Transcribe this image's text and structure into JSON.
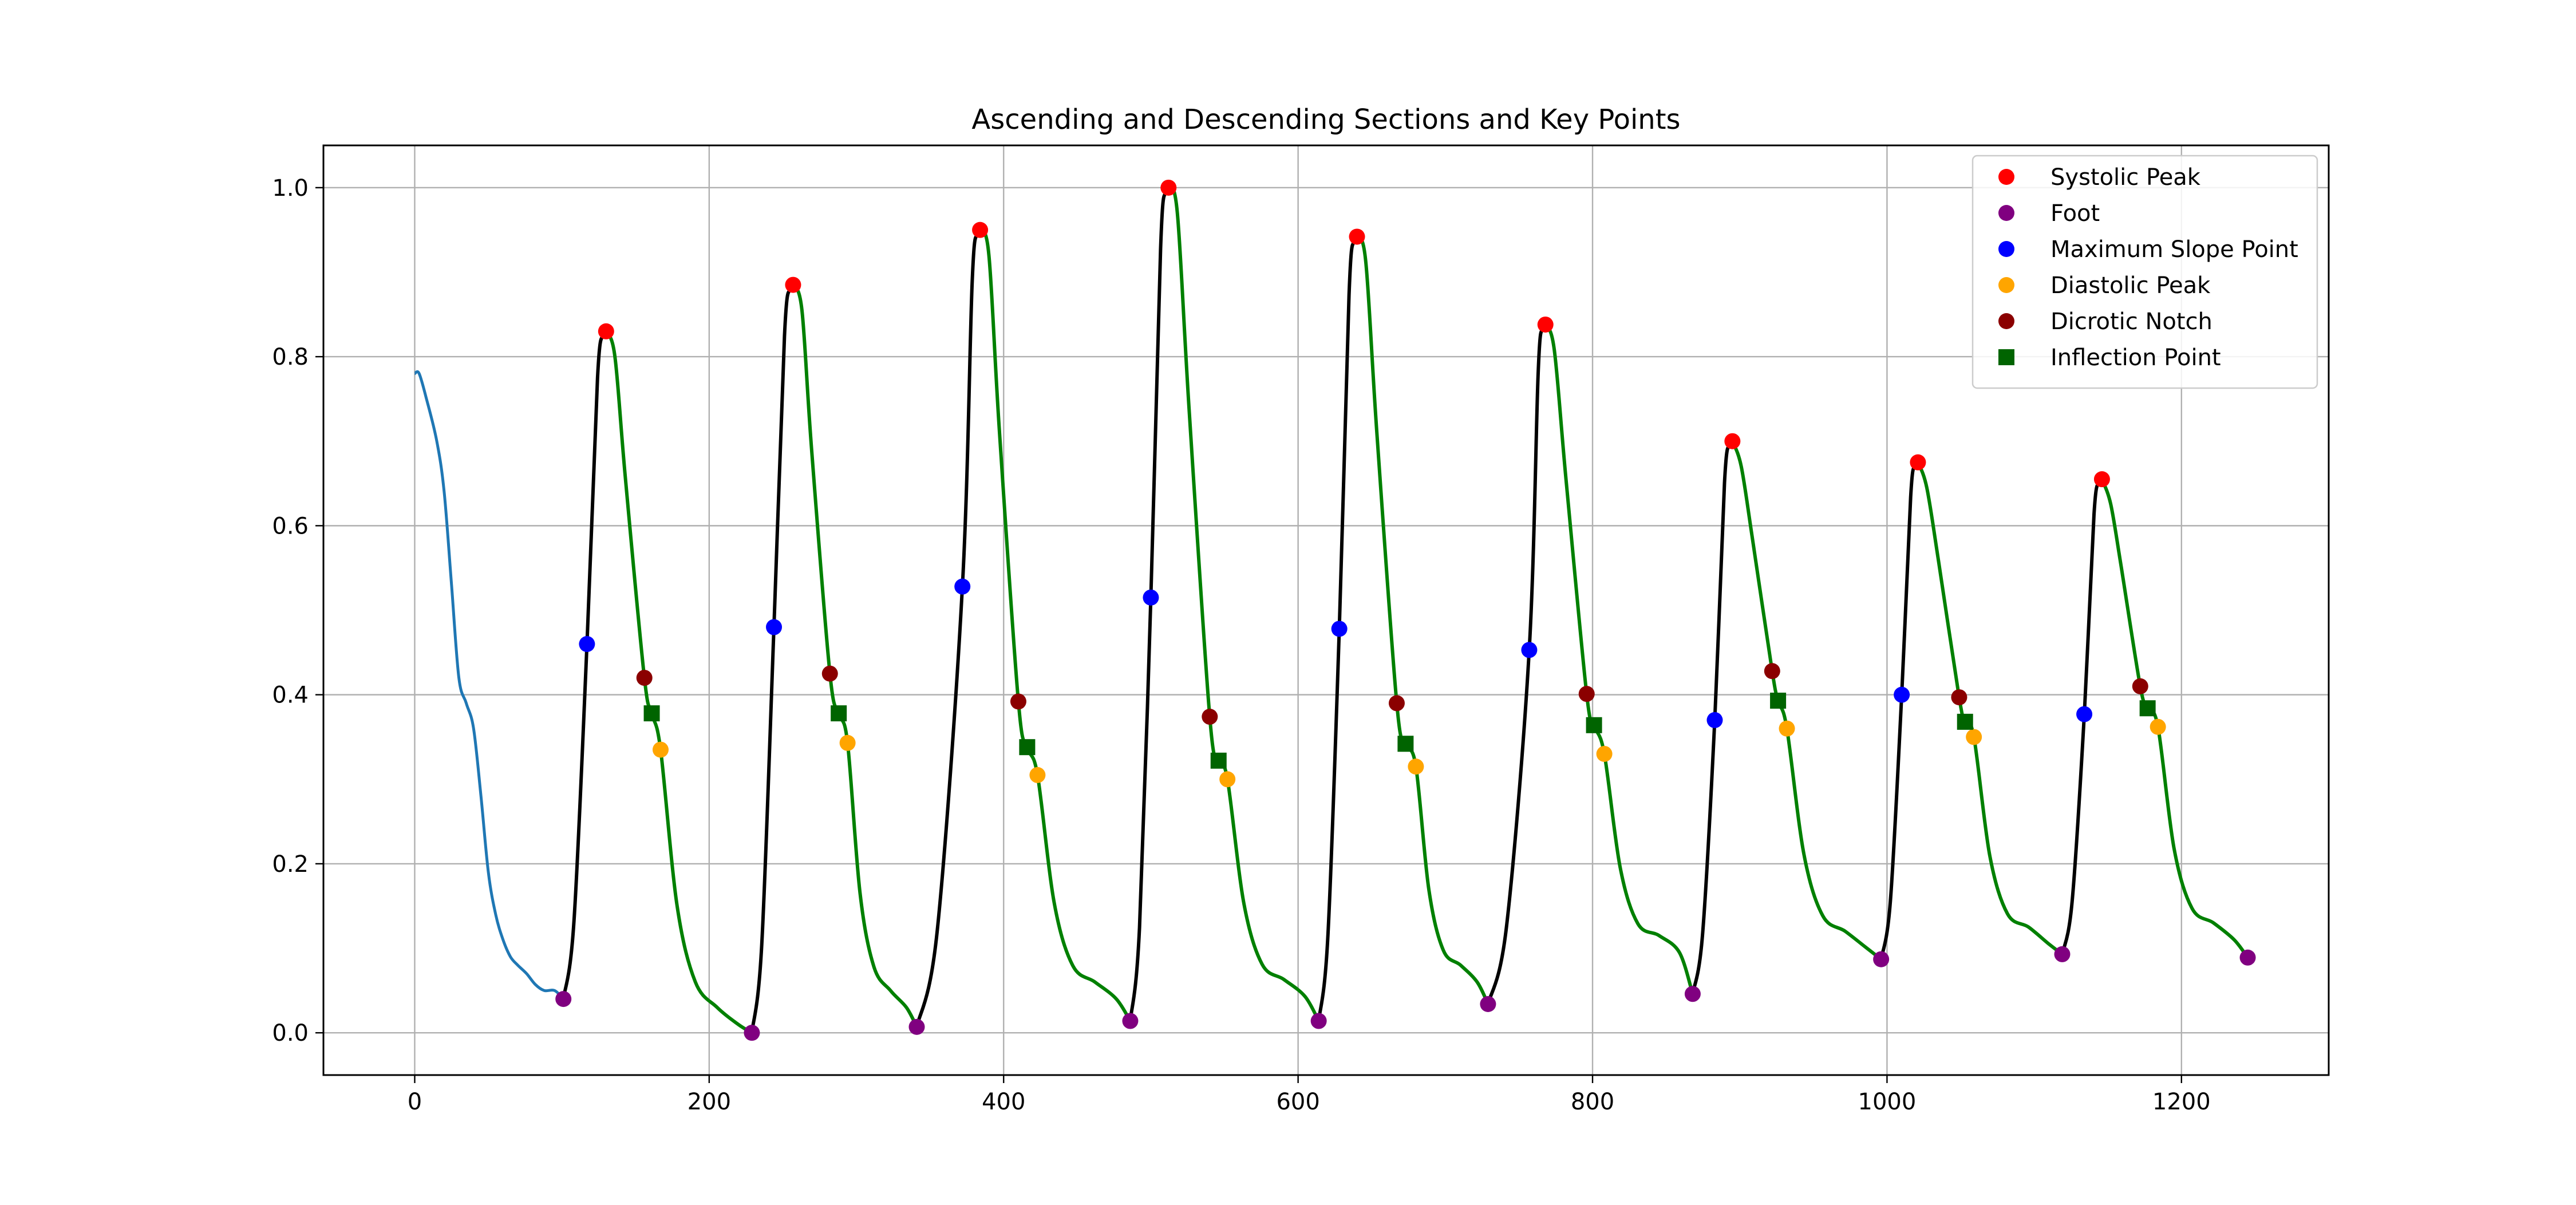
{
  "chart_data": {
    "type": "line",
    "title": "Ascending and Descending Sections and Key Points",
    "xlabel": "",
    "ylabel": "",
    "xlim": [
      -62,
      1300
    ],
    "ylim": [
      -0.05,
      1.05
    ],
    "xticks": [
      0,
      200,
      400,
      600,
      800,
      1000,
      1200
    ],
    "yticks": [
      0.0,
      0.2,
      0.4,
      0.6,
      0.8,
      1.0
    ],
    "xtick_labels": [
      "0",
      "200",
      "400",
      "600",
      "800",
      "1000",
      "1200"
    ],
    "ytick_labels": [
      "0.0",
      "0.2",
      "0.4",
      "0.6",
      "0.8",
      "1.0"
    ],
    "grid": true,
    "legend_position": "top-right",
    "colors": {
      "initial": "#1f77b4",
      "ascending": "#000000",
      "descending": "#008000",
      "systolic_peak": "#ff0000",
      "foot": "#800080",
      "max_slope": "#0000ff",
      "diastolic_peak": "#ffa500",
      "dicrotic_notch": "#8b0000",
      "inflection": "#006400"
    },
    "initial_segment": [
      [
        0,
        0.78
      ],
      [
        3,
        0.78
      ],
      [
        8,
        0.75
      ],
      [
        15,
        0.7
      ],
      [
        20,
        0.64
      ],
      [
        25,
        0.53
      ],
      [
        30,
        0.42
      ],
      [
        35,
        0.39
      ],
      [
        40,
        0.36
      ],
      [
        45,
        0.28
      ],
      [
        50,
        0.19
      ],
      [
        55,
        0.14
      ],
      [
        60,
        0.11
      ],
      [
        65,
        0.09
      ],
      [
        70,
        0.08
      ],
      [
        76,
        0.07
      ],
      [
        82,
        0.057
      ],
      [
        88,
        0.05
      ],
      [
        95,
        0.05
      ],
      [
        101,
        0.04
      ]
    ],
    "systolic_peaks": [
      [
        130,
        0.83
      ],
      [
        257,
        0.885
      ],
      [
        384,
        0.95
      ],
      [
        512,
        1.0
      ],
      [
        640,
        0.942
      ],
      [
        768,
        0.838
      ],
      [
        895,
        0.7
      ],
      [
        1021,
        0.675
      ],
      [
        1146,
        0.655
      ]
    ],
    "feet": [
      [
        101,
        0.04
      ],
      [
        229,
        0.0
      ],
      [
        341,
        0.007
      ],
      [
        486,
        0.014
      ],
      [
        614,
        0.014
      ],
      [
        729,
        0.034
      ],
      [
        868,
        0.046
      ],
      [
        996,
        0.087
      ],
      [
        1119,
        0.093
      ],
      [
        1245,
        0.089
      ]
    ],
    "max_slope_points": [
      [
        117,
        0.46
      ],
      [
        244,
        0.48
      ],
      [
        372,
        0.528
      ],
      [
        500,
        0.515
      ],
      [
        628,
        0.478
      ],
      [
        757,
        0.453
      ],
      [
        883,
        0.37
      ],
      [
        1010,
        0.4
      ],
      [
        1134,
        0.377
      ]
    ],
    "diastolic_peaks": [
      [
        167,
        0.335
      ],
      [
        294,
        0.343
      ],
      [
        423,
        0.305
      ],
      [
        552,
        0.3
      ],
      [
        680,
        0.315
      ],
      [
        808,
        0.33
      ],
      [
        932,
        0.36
      ],
      [
        1059,
        0.35
      ],
      [
        1184,
        0.362
      ]
    ],
    "dicrotic_notches": [
      [
        156,
        0.42
      ],
      [
        282,
        0.425
      ],
      [
        410,
        0.392
      ],
      [
        540,
        0.374
      ],
      [
        667,
        0.39
      ],
      [
        796,
        0.401
      ],
      [
        922,
        0.428
      ],
      [
        1049,
        0.397
      ],
      [
        1172,
        0.41
      ]
    ],
    "inflection_points": [
      [
        161,
        0.378
      ],
      [
        288,
        0.378
      ],
      [
        416,
        0.338
      ],
      [
        546,
        0.322
      ],
      [
        673,
        0.342
      ],
      [
        801,
        0.364
      ],
      [
        926,
        0.393
      ],
      [
        1053,
        0.368
      ],
      [
        1177,
        0.384
      ]
    ],
    "beat_shape": {
      "descending_pre_foot_levels": [
        0.04,
        0.0,
        0.02,
        0.03,
        0.033,
        0.05,
        0.085,
        0.09,
        0.095,
        0.1
      ]
    },
    "legend": [
      {
        "label": "Systolic Peak",
        "marker": "circle",
        "color": "#ff0000"
      },
      {
        "label": "Foot",
        "marker": "circle",
        "color": "#800080"
      },
      {
        "label": "Maximum Slope Point",
        "marker": "circle",
        "color": "#0000ff"
      },
      {
        "label": "Diastolic Peak",
        "marker": "circle",
        "color": "#ffa500"
      },
      {
        "label": "Dicrotic Notch",
        "marker": "circle",
        "color": "#8b0000"
      },
      {
        "label": "Inflection Point",
        "marker": "square",
        "color": "#006400"
      }
    ]
  }
}
